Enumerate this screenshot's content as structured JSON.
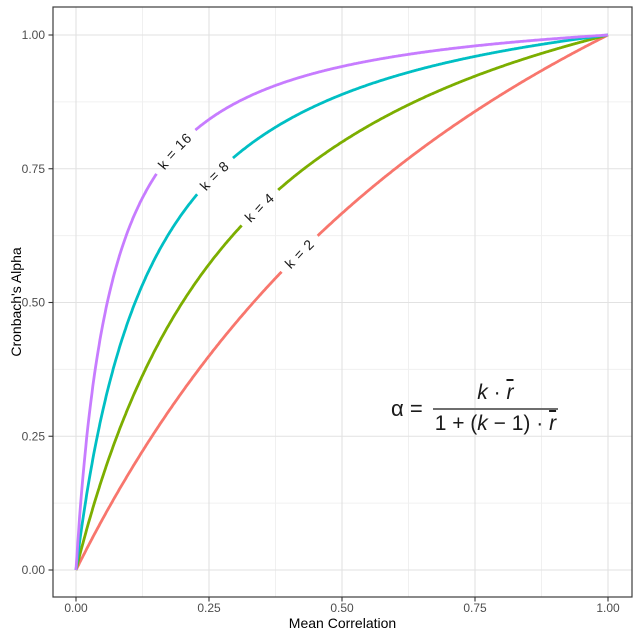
{
  "chart_data": {
    "type": "line",
    "title": "",
    "xlabel": "Mean Correlation",
    "ylabel": "Cronbach's Alpha",
    "xlim": [
      0,
      1
    ],
    "ylim": [
      0,
      1
    ],
    "grid": {
      "major": true,
      "minor": true
    },
    "legend_position": "none (curves labeled inline)",
    "x_ticks": {
      "values": [
        0,
        0.25,
        0.5,
        0.75,
        1
      ],
      "labels": [
        "0.00",
        "0.25",
        "0.50",
        "0.75",
        "1.00"
      ]
    },
    "y_ticks": {
      "values": [
        0,
        0.25,
        0.5,
        0.75,
        1
      ],
      "labels": [
        "0.00",
        "0.25",
        "0.50",
        "0.75",
        "1.00"
      ]
    },
    "function": "alpha = (k * r) / (1 + (k - 1) * r)",
    "x_samples": [
      0,
      0.1,
      0.2,
      0.3,
      0.4,
      0.5,
      0.6,
      0.7,
      0.8,
      0.9,
      1.0
    ],
    "series": [
      {
        "label": "k = 2",
        "k": 2,
        "color": "#F8766D",
        "label_position_r": 0.42,
        "values": [
          0,
          0.182,
          0.333,
          0.462,
          0.571,
          0.667,
          0.75,
          0.824,
          0.889,
          0.947,
          1.0
        ]
      },
      {
        "label": "k = 4",
        "k": 4,
        "color": "#7CAE00",
        "label_position_r": 0.345,
        "values": [
          0,
          0.308,
          0.5,
          0.632,
          0.727,
          0.8,
          0.857,
          0.903,
          0.941,
          0.973,
          1.0
        ]
      },
      {
        "label": "k = 8",
        "k": 8,
        "color": "#00BFC4",
        "label_position_r": 0.26,
        "values": [
          0,
          0.471,
          0.667,
          0.774,
          0.842,
          0.889,
          0.923,
          0.949,
          0.97,
          0.986,
          1.0
        ]
      },
      {
        "label": "k = 16",
        "k": 16,
        "color": "#C77CFF",
        "label_position_r": 0.185,
        "values": [
          0,
          0.64,
          0.8,
          0.873,
          0.914,
          0.941,
          0.96,
          0.974,
          0.985,
          0.993,
          1.0
        ]
      }
    ],
    "annotation": {
      "lhs": "α =",
      "numerator": "k · r̄",
      "denominator": "1 + (k − 1) · r̄"
    },
    "colors": {
      "background": "#ffffff",
      "panel_background": "#ffffff",
      "grid_major": "#e2e2e2",
      "grid_minor": "#f0f0f0",
      "panel_border": "#3c3c3c",
      "tick_mark": "#333333",
      "tick_label": "#4d4d4d",
      "axis_title": "#000000",
      "curve_label": "#1a1a1a",
      "fraction_bar": "#6e6e6e"
    }
  }
}
